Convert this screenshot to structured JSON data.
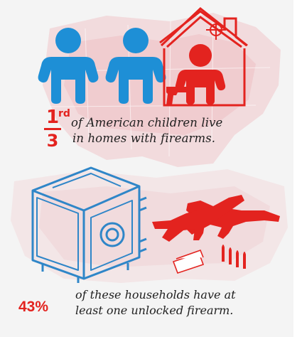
{
  "stat_one": {
    "fraction_numerator": "1",
    "fraction_superscript": "rd",
    "fraction_denominator": "3",
    "text_line1": "of American children live",
    "text_line2": "in homes with firearms."
  },
  "stat_two": {
    "percent": "43%",
    "text_line1": "of these households have at",
    "text_line2": "least one unlocked firearm."
  },
  "colors": {
    "accent_red": "#e3231f",
    "child_blue": "#1e8fd6",
    "safe_blue": "#2f86c8",
    "map_tint": "#f1cdd0",
    "text_dark": "#1f1f1f"
  },
  "icons": [
    "child-icon",
    "house-icon",
    "crosshair-icon",
    "handgun-icon",
    "safe-icon",
    "rifle-icon",
    "bullet-icon",
    "money-icon"
  ]
}
